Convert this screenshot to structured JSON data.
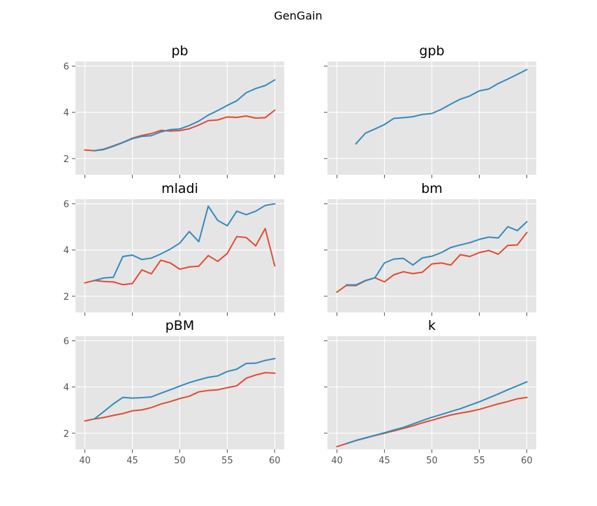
{
  "figure": {
    "suptitle": "GenGain"
  },
  "colors": {
    "series_a": "#E24A33",
    "series_b": "#348ABD"
  },
  "chart_data": [
    {
      "type": "line",
      "title": "pb",
      "xlim": [
        39,
        61
      ],
      "ylim": [
        1.3,
        6.2
      ],
      "x_ticks": [
        40,
        45,
        50,
        55,
        60
      ],
      "y_ticks": [
        2,
        4,
        6
      ],
      "show_x_tick_labels": false,
      "show_y_tick_labels": true,
      "grid": true,
      "series": [
        {
          "color": "#E24A33",
          "x": [
            40,
            41,
            42,
            43,
            44,
            45,
            46,
            47,
            48,
            49,
            50,
            51,
            52,
            53,
            54,
            55,
            56,
            57,
            58,
            59,
            60
          ],
          "y": [
            2.37,
            2.34,
            2.41,
            2.55,
            2.7,
            2.88,
            3.0,
            3.08,
            3.22,
            3.19,
            3.21,
            3.29,
            3.45,
            3.64,
            3.67,
            3.8,
            3.78,
            3.84,
            3.75,
            3.77,
            4.09
          ]
        },
        {
          "color": "#348ABD",
          "x": [
            41,
            42,
            43,
            44,
            45,
            46,
            47,
            48,
            49,
            50,
            51,
            52,
            53,
            54,
            55,
            56,
            57,
            58,
            59,
            60
          ],
          "y": [
            2.34,
            2.39,
            2.53,
            2.69,
            2.86,
            2.96,
            2.99,
            3.15,
            3.25,
            3.28,
            3.43,
            3.62,
            3.88,
            4.08,
            4.3,
            4.5,
            4.85,
            5.03,
            5.16,
            5.4
          ]
        }
      ]
    },
    {
      "type": "line",
      "title": "gpb",
      "xlim": [
        39,
        61
      ],
      "ylim": [
        1.3,
        6.2
      ],
      "x_ticks": [
        40,
        45,
        50,
        55,
        60
      ],
      "y_ticks": [
        2,
        4,
        6
      ],
      "show_x_tick_labels": false,
      "show_y_tick_labels": false,
      "grid": true,
      "series": [
        {
          "color": "#348ABD",
          "x": [
            42,
            43,
            44,
            45,
            46,
            47,
            48,
            49,
            50,
            51,
            52,
            53,
            54,
            55,
            56,
            57,
            58,
            59,
            60
          ],
          "y": [
            2.64,
            3.1,
            3.28,
            3.47,
            3.74,
            3.77,
            3.81,
            3.91,
            3.95,
            4.13,
            4.36,
            4.57,
            4.71,
            4.93,
            5.01,
            5.25,
            5.44,
            5.64,
            5.85
          ]
        }
      ]
    },
    {
      "type": "line",
      "title": "mladi",
      "xlim": [
        39,
        61
      ],
      "ylim": [
        1.3,
        6.2
      ],
      "x_ticks": [
        40,
        45,
        50,
        55,
        60
      ],
      "y_ticks": [
        2,
        4,
        6
      ],
      "show_x_tick_labels": false,
      "show_y_tick_labels": true,
      "grid": true,
      "series": [
        {
          "color": "#E24A33",
          "x": [
            40,
            41,
            42,
            43,
            44,
            45,
            46,
            47,
            48,
            49,
            50,
            51,
            52,
            53,
            54,
            55,
            56,
            57,
            58,
            59,
            60
          ],
          "y": [
            2.58,
            2.68,
            2.64,
            2.62,
            2.5,
            2.55,
            3.14,
            2.97,
            3.56,
            3.44,
            3.17,
            3.27,
            3.3,
            3.76,
            3.51,
            3.85,
            4.58,
            4.54,
            4.18,
            4.93,
            3.32
          ]
        },
        {
          "color": "#348ABD",
          "x": [
            41,
            42,
            43,
            44,
            45,
            46,
            47,
            48,
            49,
            50,
            51,
            52,
            53,
            54,
            55,
            56,
            57,
            58,
            59,
            60
          ],
          "y": [
            2.68,
            2.79,
            2.82,
            3.72,
            3.78,
            3.59,
            3.65,
            3.83,
            4.04,
            4.3,
            4.8,
            4.36,
            5.9,
            5.28,
            5.05,
            5.68,
            5.53,
            5.68,
            5.93,
            6.0
          ]
        }
      ]
    },
    {
      "type": "line",
      "title": "bm",
      "xlim": [
        39,
        61
      ],
      "ylim": [
        1.3,
        6.2
      ],
      "x_ticks": [
        40,
        45,
        50,
        55,
        60
      ],
      "y_ticks": [
        2,
        4,
        6
      ],
      "show_x_tick_labels": false,
      "show_y_tick_labels": false,
      "grid": true,
      "series": [
        {
          "color": "#E24A33",
          "x": [
            40,
            41,
            42,
            43,
            44,
            45,
            46,
            47,
            48,
            49,
            50,
            51,
            52,
            53,
            54,
            55,
            56,
            57,
            58,
            59,
            60
          ],
          "y": [
            2.18,
            2.47,
            2.46,
            2.67,
            2.8,
            2.62,
            2.93,
            3.06,
            2.98,
            3.04,
            3.4,
            3.44,
            3.35,
            3.8,
            3.72,
            3.89,
            3.98,
            3.82,
            4.2,
            4.22,
            4.75
          ]
        },
        {
          "color": "#348ABD",
          "x": [
            41,
            42,
            43,
            44,
            45,
            46,
            47,
            48,
            49,
            50,
            51,
            52,
            53,
            54,
            55,
            56,
            57,
            58,
            59,
            60
          ],
          "y": [
            2.49,
            2.49,
            2.68,
            2.8,
            3.44,
            3.61,
            3.64,
            3.35,
            3.66,
            3.73,
            3.89,
            4.11,
            4.22,
            4.32,
            4.46,
            4.56,
            4.52,
            5.01,
            4.84,
            5.22
          ]
        }
      ]
    },
    {
      "type": "line",
      "title": "pBM",
      "xlim": [
        39,
        61
      ],
      "ylim": [
        1.3,
        6.2
      ],
      "x_ticks": [
        40,
        45,
        50,
        55,
        60
      ],
      "y_ticks": [
        2,
        4,
        6
      ],
      "show_x_tick_labels": true,
      "show_y_tick_labels": true,
      "grid": true,
      "series": [
        {
          "color": "#E24A33",
          "x": [
            40,
            41,
            42,
            43,
            44,
            45,
            46,
            47,
            48,
            49,
            50,
            51,
            52,
            53,
            54,
            55,
            56,
            57,
            58,
            59,
            60
          ],
          "y": [
            2.53,
            2.62,
            2.68,
            2.77,
            2.85,
            2.97,
            3.01,
            3.11,
            3.26,
            3.37,
            3.5,
            3.6,
            3.79,
            3.85,
            3.88,
            3.97,
            4.05,
            4.38,
            4.52,
            4.62,
            4.6
          ]
        },
        {
          "color": "#348ABD",
          "x": [
            41,
            42,
            43,
            44,
            45,
            46,
            47,
            48,
            49,
            50,
            51,
            52,
            53,
            54,
            55,
            56,
            57,
            58,
            59,
            60
          ],
          "y": [
            2.62,
            2.94,
            3.27,
            3.55,
            3.52,
            3.54,
            3.57,
            3.73,
            3.88,
            4.04,
            4.19,
            4.31,
            4.42,
            4.48,
            4.67,
            4.77,
            5.02,
            5.03,
            5.15,
            5.23
          ]
        }
      ]
    },
    {
      "type": "line",
      "title": "k",
      "xlim": [
        39,
        61
      ],
      "ylim": [
        1.3,
        6.2
      ],
      "x_ticks": [
        40,
        45,
        50,
        55,
        60
      ],
      "y_ticks": [
        2,
        4,
        6
      ],
      "show_x_tick_labels": true,
      "show_y_tick_labels": false,
      "grid": true,
      "series": [
        {
          "color": "#E24A33",
          "x": [
            40,
            41,
            42,
            43,
            44,
            45,
            46,
            47,
            48,
            49,
            50,
            51,
            52,
            53,
            54,
            55,
            56,
            57,
            58,
            59,
            60
          ],
          "y": [
            1.42,
            1.55,
            1.68,
            1.79,
            1.9,
            2.0,
            2.1,
            2.21,
            2.32,
            2.45,
            2.56,
            2.68,
            2.79,
            2.87,
            2.94,
            3.03,
            3.15,
            3.27,
            3.37,
            3.49,
            3.55
          ]
        },
        {
          "color": "#348ABD",
          "x": [
            41,
            42,
            43,
            44,
            45,
            46,
            47,
            48,
            49,
            50,
            51,
            52,
            53,
            54,
            55,
            56,
            57,
            58,
            59,
            60
          ],
          "y": [
            1.55,
            1.69,
            1.8,
            1.91,
            2.02,
            2.14,
            2.25,
            2.4,
            2.55,
            2.69,
            2.81,
            2.94,
            3.06,
            3.21,
            3.36,
            3.53,
            3.7,
            3.88,
            4.05,
            4.22
          ]
        }
      ]
    }
  ]
}
